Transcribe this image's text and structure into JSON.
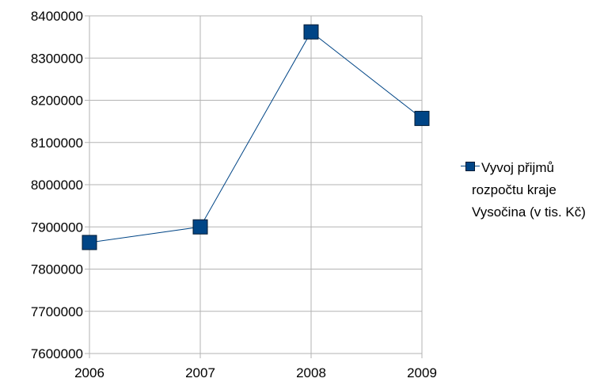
{
  "chart_data": {
    "type": "line",
    "x": [
      "2006",
      "2007",
      "2008",
      "2009"
    ],
    "series": [
      {
        "name": "Vyvoj přijmů rozpočtu kraje Vysočina (v tis. Kč)",
        "values": [
          7863000,
          7900000,
          8362000,
          8157000
        ],
        "color": "#004586",
        "marker": "square"
      }
    ],
    "y_ticks": [
      "7600000",
      "7700000",
      "7800000",
      "7900000",
      "8000000",
      "8100000",
      "8200000",
      "8300000",
      "8400000"
    ],
    "ylim": [
      7600000,
      8400000
    ],
    "grid": true,
    "legend_position": "right"
  }
}
